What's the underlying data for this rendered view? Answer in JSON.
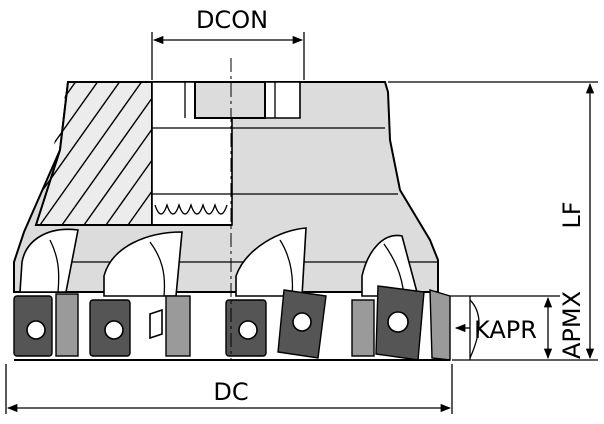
{
  "dimensions": {
    "dcon": "DCON",
    "dc": "DC",
    "lf": "LF",
    "apmx": "APMX",
    "kapr": "KAPR"
  },
  "colors": {
    "line": "#000000",
    "body": "#dcdcdc",
    "section": "#ececec",
    "insert_dark": "#555555",
    "background": "#ffffff"
  }
}
